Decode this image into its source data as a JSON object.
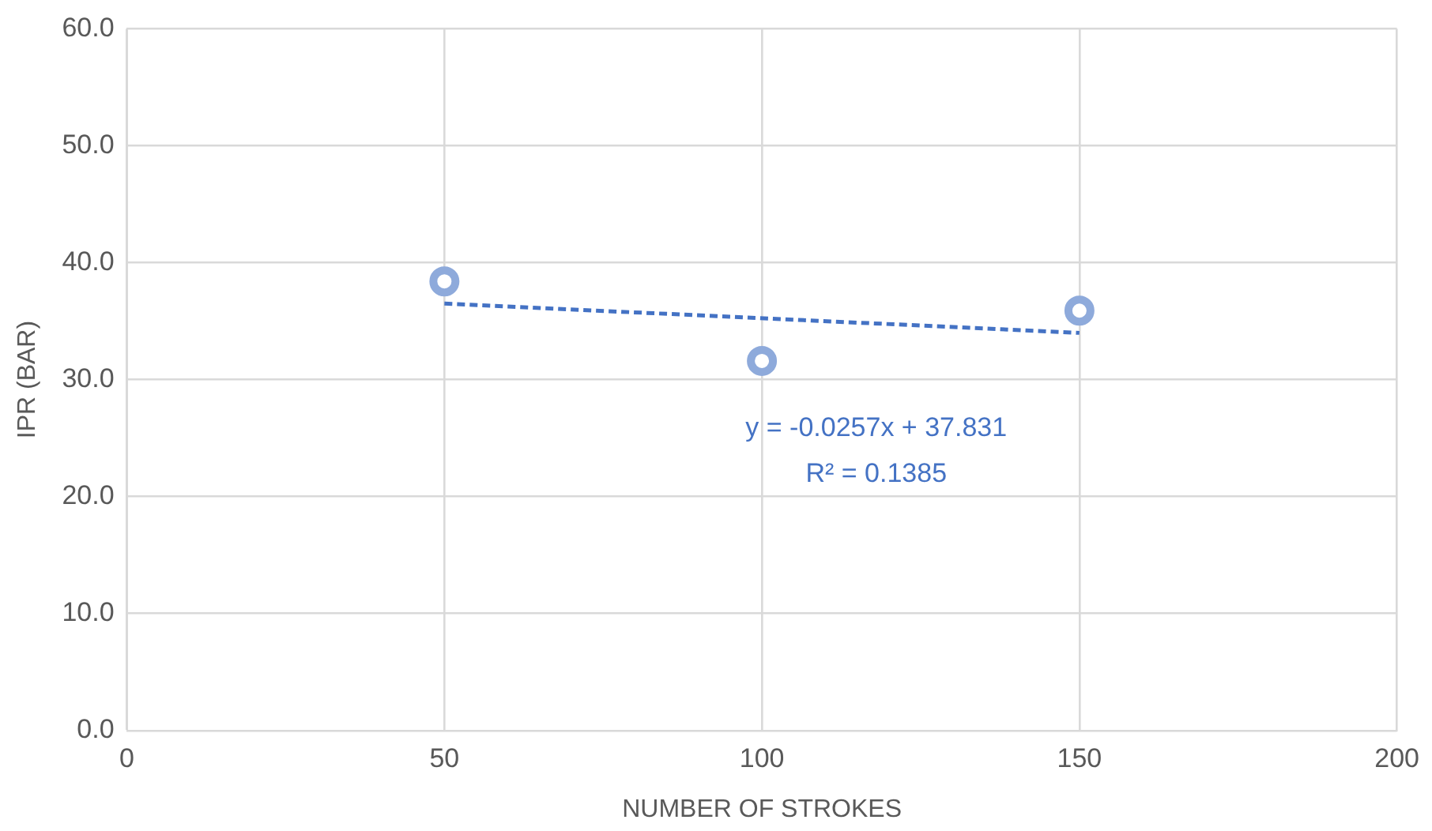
{
  "chart_data": {
    "type": "scatter",
    "xlabel": "NUMBER OF STROKES",
    "ylabel": "IPR (BAR)",
    "series": [
      {
        "type": "scatter",
        "color": "#8eaadb",
        "x": [
          50,
          100,
          150
        ],
        "values": [
          38.4,
          31.6,
          35.9
        ],
        "marker": "circle"
      },
      {
        "type": "line",
        "color": "#4472c4",
        "x": [
          50,
          150
        ],
        "values": [
          36.5,
          34.0
        ],
        "line_style": "dashed",
        "marker": "none"
      }
    ],
    "xlim": [
      0,
      200
    ],
    "xticks": [
      0,
      50,
      100,
      150,
      200
    ],
    "ylim": [
      0,
      60
    ],
    "yticks": [
      {
        "value": 0,
        "label": "0.0"
      },
      {
        "value": 10,
        "label": "10.0"
      },
      {
        "value": 20,
        "label": "20.0"
      },
      {
        "value": 30,
        "label": "30.0"
      },
      {
        "value": 40,
        "label": "40.0"
      },
      {
        "value": 50,
        "label": "50.0"
      },
      {
        "value": 60,
        "label": "60.0"
      }
    ],
    "grid": true,
    "legend": false,
    "annotations": [
      "y = -0.0257x + 37.831",
      "R² = 0.1385"
    ]
  }
}
